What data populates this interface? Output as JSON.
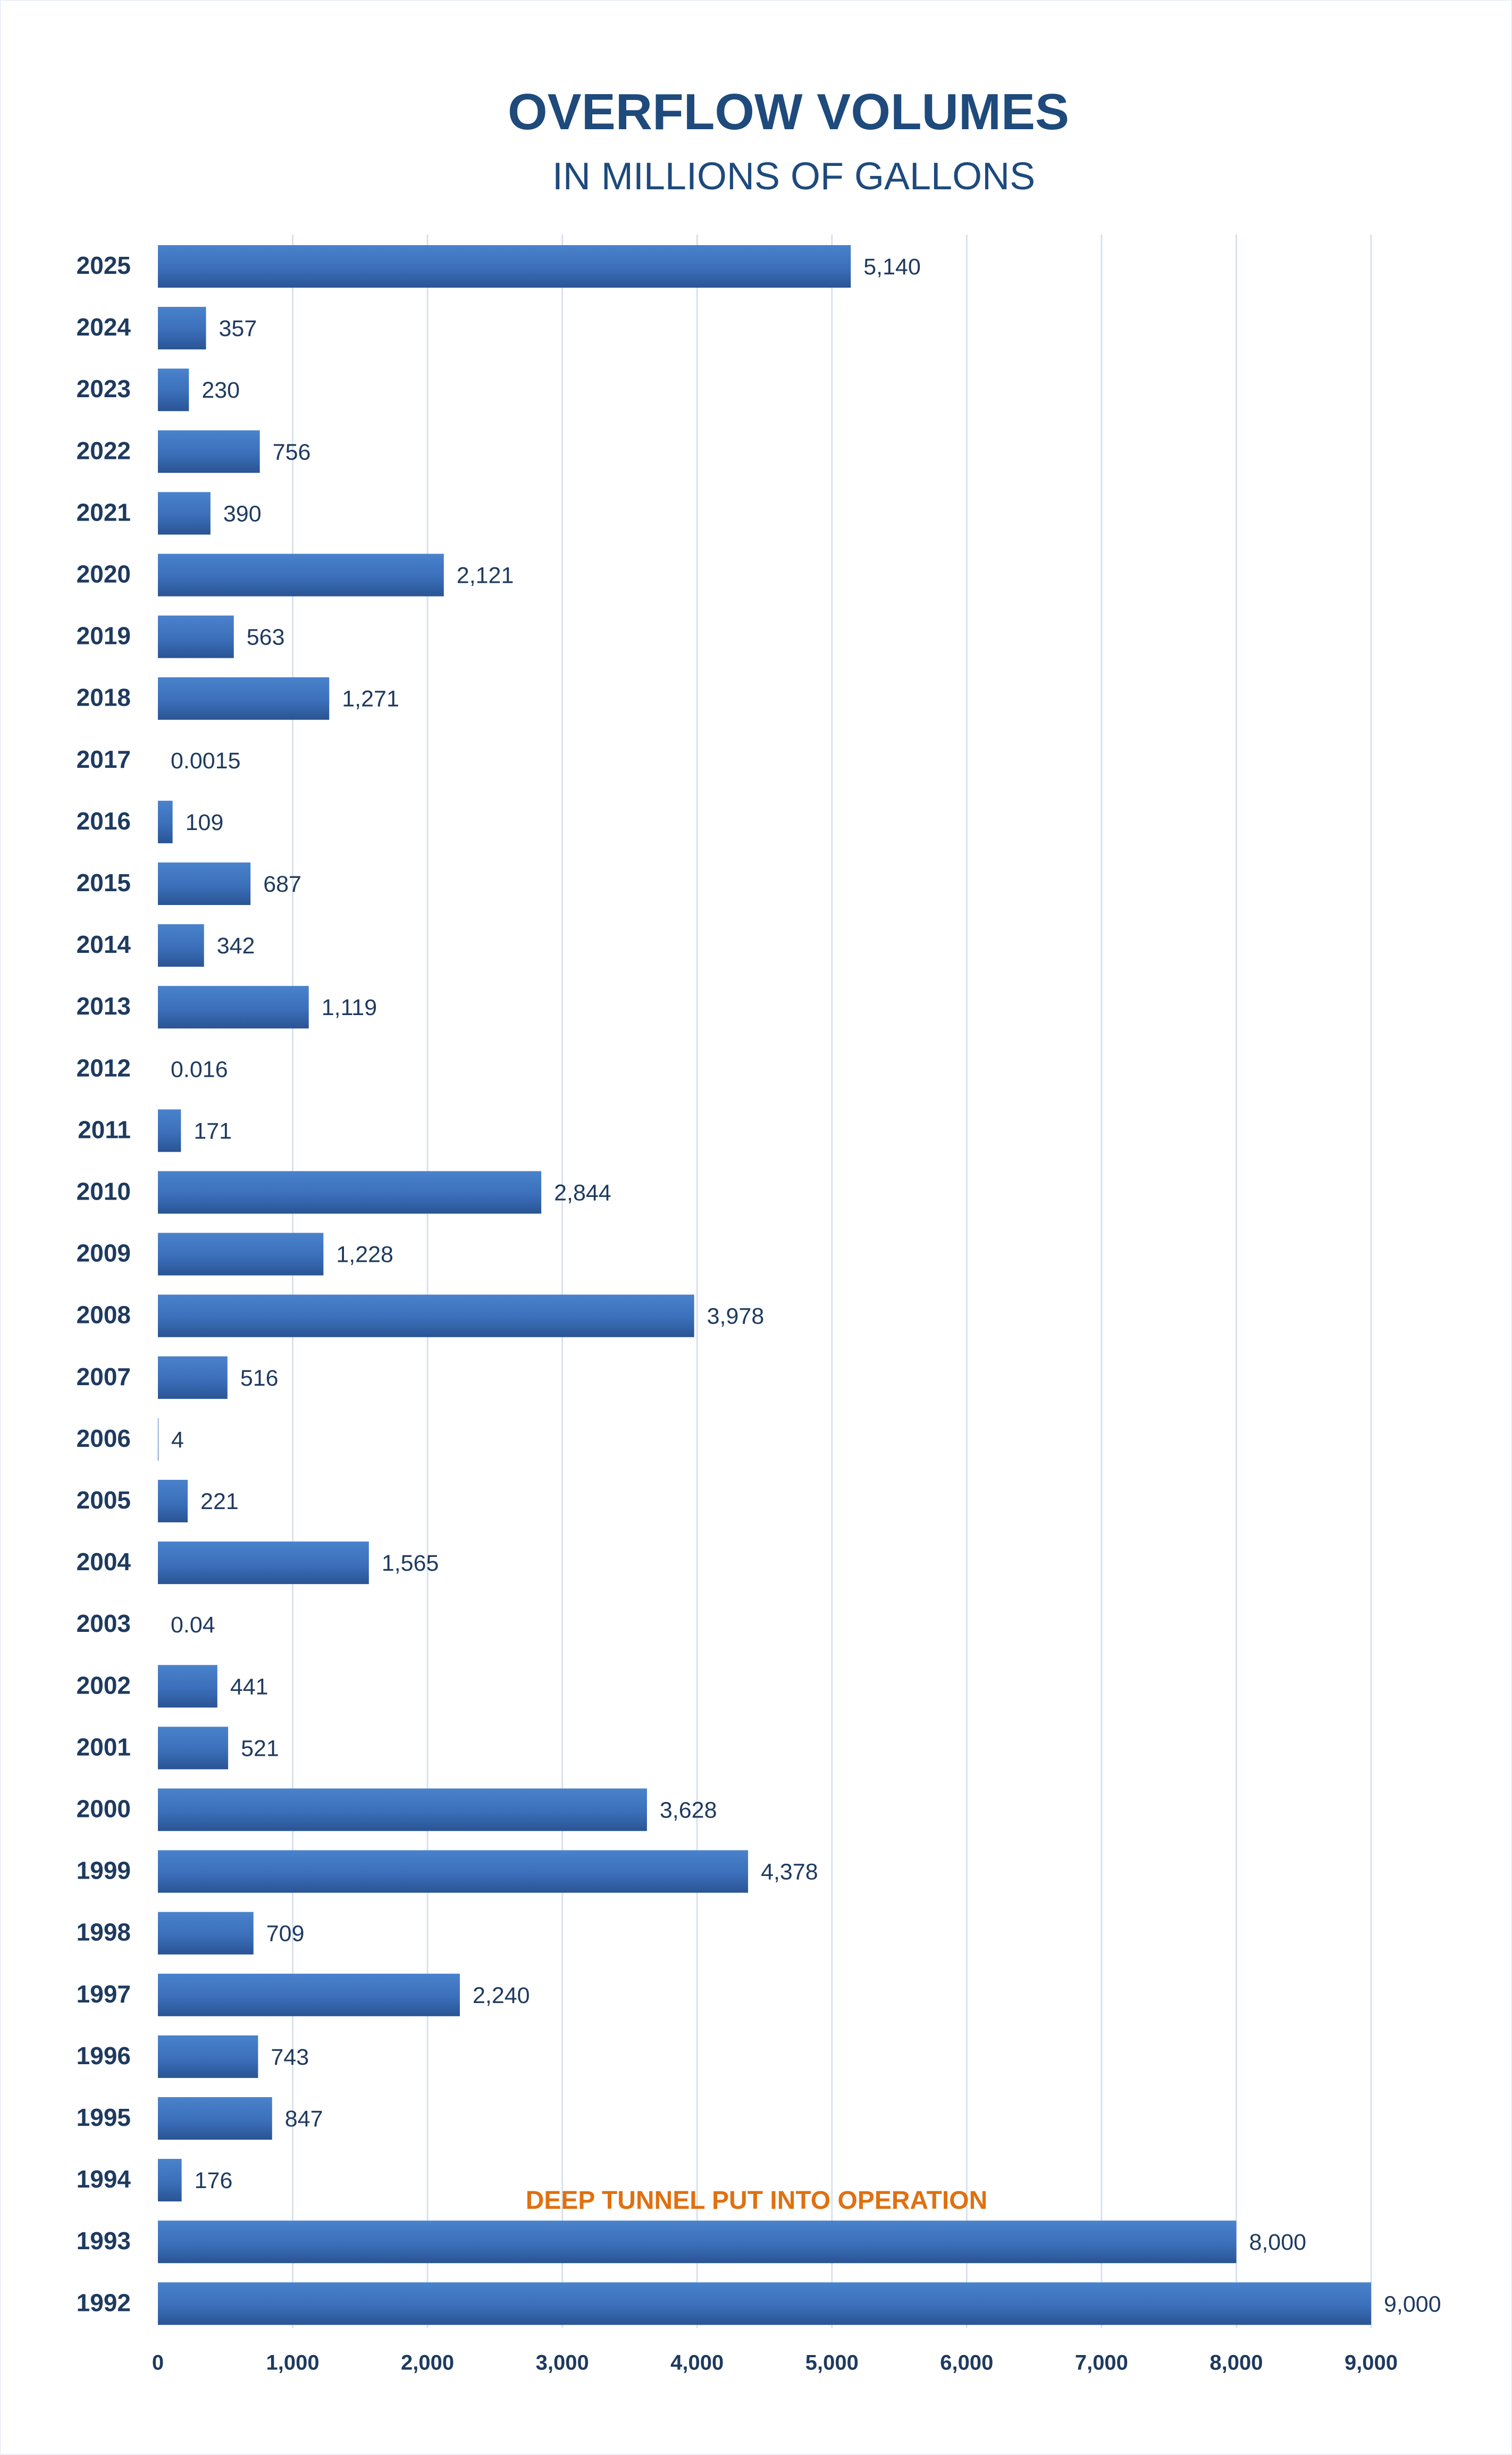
{
  "chart_data": {
    "type": "bar",
    "orientation": "horizontal",
    "title": "OVERFLOW VOLUMES",
    "subtitle": "IN MILLIONS OF GALLONS",
    "categories": [
      "2025",
      "2024",
      "2023",
      "2022",
      "2021",
      "2020",
      "2019",
      "2018",
      "2017",
      "2016",
      "2015",
      "2014",
      "2013",
      "2012",
      "2011",
      "2010",
      "2009",
      "2008",
      "2007",
      "2006",
      "2005",
      "2004",
      "2003",
      "2002",
      "2001",
      "2000",
      "1999",
      "1998",
      "1997",
      "1996",
      "1995",
      "1994",
      "1993",
      "1992"
    ],
    "values": [
      5140,
      357,
      230,
      756,
      390,
      2121,
      563,
      1271,
      0.0015,
      109,
      687,
      342,
      1119,
      0.016,
      171,
      2844,
      1228,
      3978,
      516,
      4,
      221,
      1565,
      0.04,
      441,
      521,
      3628,
      4378,
      709,
      2240,
      743,
      847,
      176,
      8000,
      9000
    ],
    "value_labels": [
      "5,140",
      "357",
      "230",
      "756",
      "390",
      "2,121",
      "563",
      "1,271",
      "0.0015",
      "109",
      "687",
      "342",
      "1,119",
      "0.016",
      "171",
      "2,844",
      "1,228",
      "3,978",
      "516",
      "4",
      "221",
      "1,565",
      "0.04",
      "441",
      "521",
      "3,628",
      "4,378",
      "709",
      "2,240",
      "743",
      "847",
      "176",
      "8,000",
      "9,000"
    ],
    "xlim": [
      0,
      9000
    ],
    "xticks": [
      0,
      1000,
      2000,
      3000,
      4000,
      5000,
      6000,
      7000,
      8000,
      9000
    ],
    "xtick_labels": [
      "0",
      "1,000",
      "2,000",
      "3,000",
      "4,000",
      "5,000",
      "6,000",
      "7,000",
      "8,000",
      "9,000"
    ],
    "xlabel": "",
    "ylabel": "",
    "grid": "vertical",
    "legend": "none",
    "bar_color": "#3b6fba",
    "annotations": [
      {
        "text": "DEEP TUNNEL PUT INTO OPERATION",
        "category": "1993",
        "color": "#e07010"
      }
    ]
  }
}
